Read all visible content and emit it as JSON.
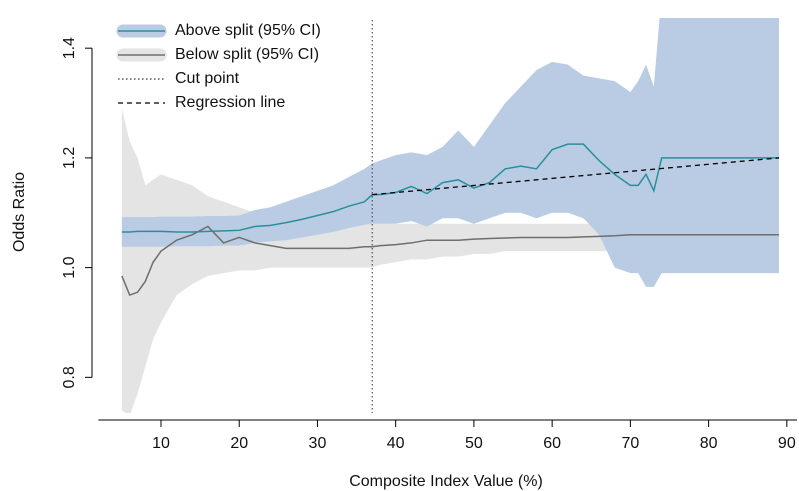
{
  "chart_data": {
    "type": "line",
    "xlabel": "Composite Index Value (%)",
    "ylabel": "Odds Ratio",
    "xlim": [
      2,
      91.3
    ],
    "ylim": [
      0.735,
      1.455
    ],
    "xticks": [
      10,
      20,
      30,
      40,
      50,
      60,
      70,
      80,
      90
    ],
    "yticks": [
      0.8,
      {
        "value": 1,
        "label": "1.0"
      },
      1.2,
      1.4
    ],
    "legend": "top-left",
    "x": [
      5,
      6,
      7,
      8,
      9,
      10,
      12,
      14,
      16,
      18,
      20,
      22,
      24,
      26,
      28,
      30,
      32,
      34,
      36,
      37,
      38,
      40,
      42,
      44,
      46,
      48,
      50,
      52,
      54,
      56,
      58,
      60,
      62,
      64,
      66,
      68,
      70,
      71,
      72,
      73,
      74,
      76,
      78,
      80,
      82,
      84,
      86,
      88,
      89
    ],
    "series": [
      {
        "name": "Below split (95% CI)",
        "color": "#6e6e6e",
        "band_color": "#e3e4e3",
        "values": [
          0.985,
          0.95,
          0.955,
          0.975,
          1.01,
          1.03,
          1.05,
          1.06,
          1.075,
          1.045,
          1.055,
          1.045,
          1.04,
          1.035,
          1.035,
          1.035,
          1.035,
          1.035,
          1.038,
          1.038,
          1.04,
          1.042,
          1.045,
          1.05,
          1.05,
          1.05,
          1.052,
          1.053,
          1.054,
          1.055,
          1.055,
          1.055,
          1.055,
          1.056,
          1.057,
          1.058,
          1.06,
          1.06,
          1.06,
          1.06,
          1.06,
          1.06,
          1.06,
          1.06,
          1.06,
          1.06,
          1.06,
          1.06,
          1.06
        ],
        "upper": [
          1.29,
          1.23,
          1.2,
          1.15,
          1.16,
          1.17,
          1.16,
          1.15,
          1.13,
          1.12,
          1.11,
          1.1,
          1.1,
          1.1,
          1.095,
          1.09,
          1.09,
          1.085,
          1.08,
          1.08,
          1.08,
          1.08,
          1.08,
          1.08,
          1.08,
          1.08,
          1.08,
          1.08,
          1.08,
          1.08,
          1.08,
          1.08,
          1.08,
          1.08,
          1.08,
          1.08,
          1.085,
          1.085,
          1.085,
          1.085,
          1.085,
          1.085,
          1.085,
          1.085,
          1.085,
          1.085,
          1.085,
          1.085,
          1.085
        ],
        "lower": [
          0.74,
          0.73,
          0.77,
          0.82,
          0.87,
          0.9,
          0.95,
          0.97,
          0.985,
          0.99,
          0.995,
          0.995,
          1.0,
          1.0,
          1.0,
          1.0,
          1.0,
          1.0,
          1.0,
          1.0,
          1.005,
          1.01,
          1.015,
          1.015,
          1.02,
          1.02,
          1.025,
          1.025,
          1.03,
          1.03,
          1.03,
          1.03,
          1.03,
          1.03,
          1.03,
          1.03,
          1.035,
          1.035,
          1.035,
          1.035,
          1.035,
          1.035,
          1.035,
          1.035,
          1.035,
          1.035,
          1.035,
          1.035,
          1.035
        ]
      },
      {
        "name": "Above split (95% CI)",
        "color": "#2a8f9c",
        "band_color": "#b9cce4",
        "values": [
          1.065,
          1.065,
          1.066,
          1.066,
          1.066,
          1.066,
          1.065,
          1.065,
          1.066,
          1.067,
          1.068,
          1.075,
          1.077,
          1.082,
          1.088,
          1.095,
          1.102,
          1.112,
          1.12,
          1.133,
          1.133,
          1.137,
          1.148,
          1.135,
          1.155,
          1.16,
          1.145,
          1.155,
          1.18,
          1.185,
          1.18,
          1.215,
          1.225,
          1.225,
          1.195,
          1.17,
          1.15,
          1.15,
          1.17,
          1.14,
          1.2,
          1.2,
          1.2,
          1.2,
          1.2,
          1.2,
          1.2,
          1.2,
          1.2
        ],
        "upper": [
          1.092,
          1.092,
          1.092,
          1.092,
          1.092,
          1.093,
          1.093,
          1.093,
          1.094,
          1.094,
          1.095,
          1.105,
          1.11,
          1.12,
          1.13,
          1.14,
          1.15,
          1.165,
          1.18,
          1.19,
          1.195,
          1.205,
          1.21,
          1.205,
          1.22,
          1.25,
          1.22,
          1.26,
          1.3,
          1.33,
          1.36,
          1.375,
          1.37,
          1.35,
          1.345,
          1.34,
          1.32,
          1.34,
          1.37,
          1.33,
          1.5,
          1.5,
          1.5,
          1.5,
          1.5,
          1.5,
          1.5,
          1.5,
          1.5
        ],
        "lower": [
          1.038,
          1.038,
          1.038,
          1.038,
          1.038,
          1.038,
          1.039,
          1.039,
          1.039,
          1.04,
          1.04,
          1.045,
          1.048,
          1.05,
          1.055,
          1.06,
          1.065,
          1.072,
          1.078,
          1.08,
          1.08,
          1.08,
          1.085,
          1.075,
          1.09,
          1.09,
          1.08,
          1.09,
          1.1,
          1.1,
          1.09,
          1.1,
          1.1,
          1.09,
          1.06,
          1.0,
          0.99,
          0.99,
          0.965,
          0.965,
          0.99,
          0.99,
          0.99,
          0.99,
          0.99,
          0.99,
          0.99,
          0.99,
          0.99
        ]
      }
    ],
    "cut_point": {
      "label": "Cut point",
      "x": 37
    },
    "regression": {
      "label": "Regression line",
      "x": [
        37,
        89
      ],
      "values": [
        1.133,
        1.2
      ]
    }
  }
}
